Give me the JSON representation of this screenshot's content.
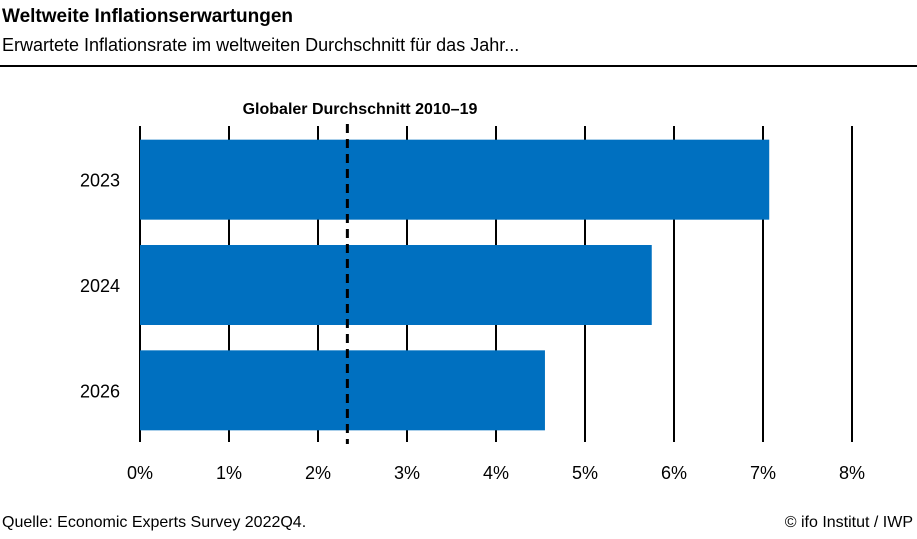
{
  "header": {
    "title": "Weltweite Inflationserwartungen",
    "subtitle": "Erwartete Inflationsrate im weltweiten Durchschnitt für das Jahr..."
  },
  "footer": {
    "source": "Quelle: Economic Experts Survey 2022Q4.",
    "copyright": "© ifo Institut / IWP"
  },
  "chart_data": {
    "type": "bar",
    "orientation": "horizontal",
    "title": "Weltweite Inflationserwartungen",
    "subtitle": "Erwartete Inflationsrate im weltweiten Durchschnitt für das Jahr...",
    "categories": [
      "2023",
      "2024",
      "2026"
    ],
    "values": [
      7.07,
      5.75,
      4.55
    ],
    "value_unit": "%",
    "xlim": [
      0,
      8
    ],
    "x_ticks": [
      0,
      1,
      2,
      3,
      4,
      5,
      6,
      7,
      8
    ],
    "x_tick_labels": [
      "0%",
      "1%",
      "2%",
      "3%",
      "4%",
      "5%",
      "6%",
      "7%",
      "8%"
    ],
    "grid": "vertical",
    "reference_line": {
      "value": 2.33,
      "label": "Globaler Durchschnitt 2010–19",
      "style": "dashed"
    },
    "colors": {
      "bar": "#0070c0",
      "grid": "#000000",
      "reference": "#000000"
    }
  }
}
